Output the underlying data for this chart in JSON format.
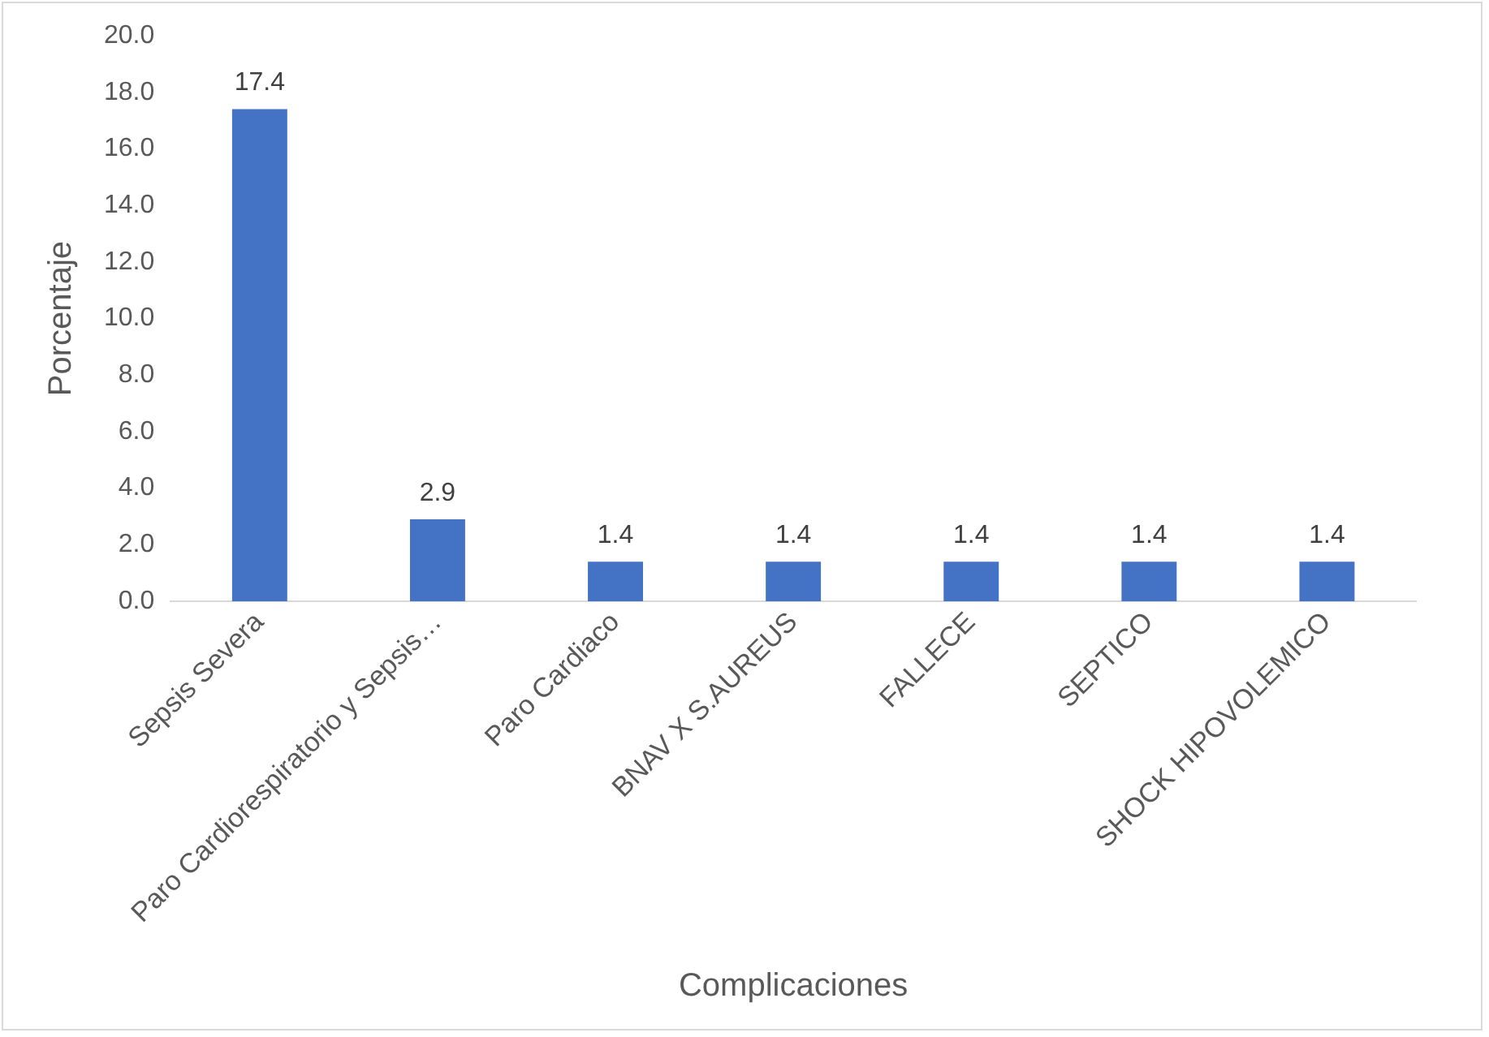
{
  "chart_data": {
    "type": "bar",
    "xlabel": "Complicaciones",
    "ylabel": "Porcentaje",
    "categories": [
      "Sepsis Severa",
      "Paro Cardiorespiratorio y Sepsis…",
      "Paro Cardiaco",
      "BNAV X S.AUREUS",
      "FALLECE",
      "SEPTICO",
      "SHOCK HIPOVOLEMICO"
    ],
    "values": [
      17.4,
      2.9,
      1.4,
      1.4,
      1.4,
      1.4,
      1.4
    ],
    "color": "#4472c4",
    "ylim": [
      0,
      20
    ],
    "yticks": [
      {
        "value": 0,
        "label": "0.0"
      },
      {
        "value": 2,
        "label": "2.0"
      },
      {
        "value": 4,
        "label": "4.0"
      },
      {
        "value": 6,
        "label": "6.0"
      },
      {
        "value": 8,
        "label": "8.0"
      },
      {
        "value": 10,
        "label": "10.0"
      },
      {
        "value": 12,
        "label": "12.0"
      },
      {
        "value": 14,
        "label": "14.0"
      },
      {
        "value": 16,
        "label": "16.0"
      },
      {
        "value": 18,
        "label": "18.0"
      },
      {
        "value": 20,
        "label": "20.0"
      }
    ],
    "data_labels": true,
    "grid": false,
    "legend": false
  }
}
